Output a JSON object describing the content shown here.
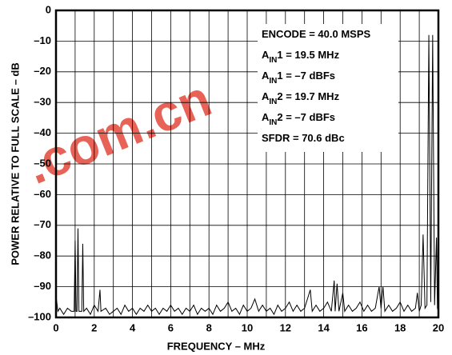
{
  "chart_data": {
    "type": "line",
    "xlabel": "FREQUENCY – MHz",
    "ylabel": "POWER RELATIVE TO FULL SCALE – dB",
    "watermark": ".com.cn",
    "annotations": [
      [
        "ENCODE = 40.0 MSPS"
      ],
      [
        "A",
        "IN",
        "1 = 19.5 MHz"
      ],
      [
        "A",
        "IN",
        "1 = –7 dBFs"
      ],
      [
        "A",
        "IN",
        "2 = 19.7 MHz"
      ],
      [
        "A",
        "IN",
        "2 = –7 dBFs"
      ],
      [
        "SFDR = 70.6 dBc"
      ]
    ],
    "xlim": [
      0,
      20
    ],
    "ylim": [
      -100,
      0
    ],
    "xticks": [
      0,
      2,
      4,
      6,
      8,
      10,
      12,
      14,
      16,
      18,
      20
    ],
    "xminorticks": [
      1,
      3,
      5,
      7,
      9,
      11,
      13,
      15,
      17,
      19
    ],
    "yticks": [
      0,
      {
        "value": -10,
        "label": "–10"
      },
      {
        "value": -20,
        "label": "–20"
      },
      {
        "value": -30,
        "label": "–30"
      },
      {
        "value": -40,
        "label": "–40"
      },
      {
        "value": -50,
        "label": "–50"
      },
      {
        "value": -60,
        "label": "–60"
      },
      {
        "value": -70,
        "label": "–70"
      },
      {
        "value": -80,
        "label": "–80"
      },
      {
        "value": -90,
        "label": "–90"
      },
      {
        "value": -100,
        "label": "–100"
      }
    ],
    "grid": true,
    "color": "#000000",
    "x": [
      0,
      0.1,
      0.2,
      0.4,
      0.6,
      0.8,
      0.95,
      1.0,
      1.05,
      1.1,
      1.15,
      1.2,
      1.35,
      1.4,
      1.45,
      1.6,
      1.8,
      2.0,
      2.2,
      2.3,
      2.35,
      2.6,
      2.8,
      3.0,
      3.2,
      3.4,
      3.6,
      3.8,
      4.0,
      4.2,
      4.4,
      4.6,
      4.8,
      5.0,
      5.2,
      5.4,
      5.6,
      5.8,
      6.0,
      6.2,
      6.4,
      6.6,
      6.8,
      7.0,
      7.2,
      7.4,
      7.6,
      7.8,
      8.0,
      8.2,
      8.4,
      8.6,
      8.8,
      9.0,
      9.2,
      9.4,
      9.6,
      9.8,
      10.0,
      10.2,
      10.4,
      10.6,
      10.8,
      11.0,
      11.2,
      11.4,
      11.6,
      11.8,
      12.0,
      12.2,
      12.4,
      12.6,
      12.8,
      13.0,
      13.2,
      13.3,
      13.4,
      13.6,
      13.8,
      14.0,
      14.2,
      14.4,
      14.55,
      14.6,
      14.7,
      14.8,
      15.0,
      15.1,
      15.3,
      15.5,
      15.7,
      15.9,
      16.1,
      16.3,
      16.5,
      16.7,
      16.9,
      17.0,
      17.1,
      17.2,
      17.4,
      17.6,
      17.8,
      18.0,
      18.2,
      18.4,
      18.6,
      18.8,
      18.9,
      19.0,
      19.1,
      19.2,
      19.3,
      19.4,
      19.5,
      19.6,
      19.7,
      19.8,
      19.9,
      19.95,
      20.0
    ],
    "values": [
      -93,
      -98,
      -97,
      -99,
      -97,
      -98,
      -98,
      -75,
      -98,
      -98,
      -71,
      -98,
      -98,
      -76,
      -98,
      -97,
      -99,
      -96,
      -98,
      -91,
      -98,
      -97,
      -99,
      -98,
      -97,
      -99,
      -96,
      -98,
      -97,
      -99,
      -97,
      -98,
      -96,
      -98,
      -97,
      -99,
      -97,
      -98,
      -96,
      -98,
      -97,
      -99,
      -97,
      -98,
      -96,
      -99,
      -97,
      -98,
      -97,
      -99,
      -96,
      -98,
      -97,
      -95,
      -98,
      -97,
      -99,
      -96,
      -98,
      -97,
      -94,
      -98,
      -96,
      -98,
      -97,
      -99,
      -96,
      -98,
      -97,
      -95,
      -98,
      -96,
      -98,
      -97,
      -93,
      -91,
      -98,
      -96,
      -98,
      -97,
      -95,
      -98,
      -88,
      -98,
      -89,
      -98,
      -92,
      -98,
      -96,
      -98,
      -97,
      -95,
      -98,
      -96,
      -98,
      -97,
      -90,
      -97,
      -90,
      -98,
      -96,
      -98,
      -97,
      -95,
      -98,
      -96,
      -98,
      -97,
      -92,
      -98,
      -96,
      -73,
      -97,
      -96,
      -8,
      -95,
      -8,
      -96,
      -74,
      -97,
      -98
    ]
  }
}
